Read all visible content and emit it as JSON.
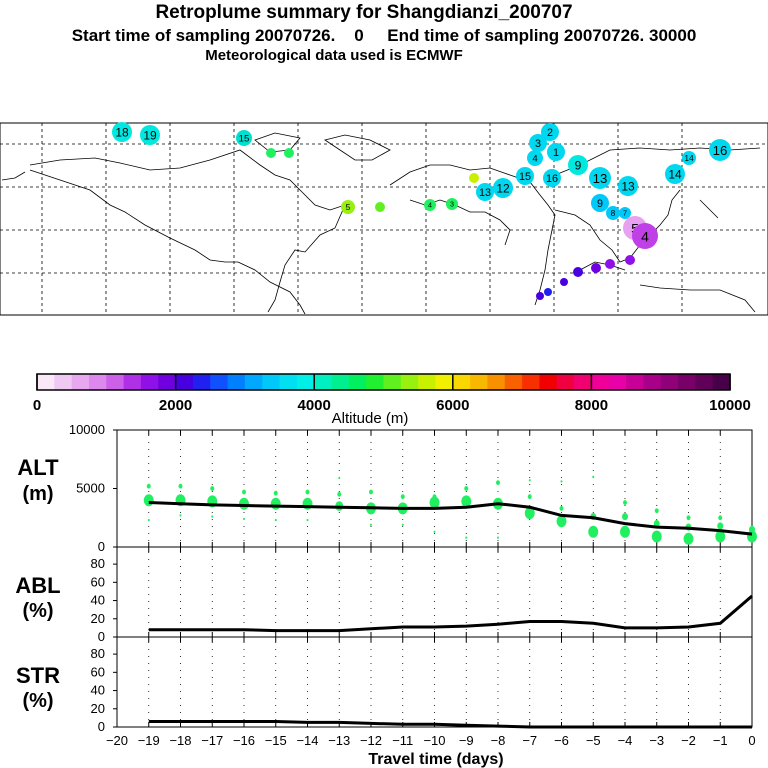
{
  "header": {
    "title": "Retroplume summary for Shangdianzi_200707",
    "line2": "Start time of sampling 20070726.    0     End time of sampling 20070726. 30000",
    "line3": "Meteorological data used is ECMWF"
  },
  "colorbar": {
    "colors": [
      "#f8e8f8",
      "#f0c8f4",
      "#e8a8f0",
      "#dc88ec",
      "#cc60e8",
      "#b030e8",
      "#9010e8",
      "#7000e0",
      "#4800e0",
      "#2020f0",
      "#1050ff",
      "#0080ff",
      "#00a8ff",
      "#00c8f8",
      "#00e0f0",
      "#00f0e8",
      "#00f0c0",
      "#00f090",
      "#00f060",
      "#20f030",
      "#60f020",
      "#98f010",
      "#c8f000",
      "#f0f000",
      "#f8d800",
      "#f8b800",
      "#f89000",
      "#f86000",
      "#f83000",
      "#f00000",
      "#f00040",
      "#f00070",
      "#f00098",
      "#e800a8",
      "#c80098",
      "#a80088",
      "#900078",
      "#780068",
      "#600058",
      "#480048"
    ],
    "ticks": [
      "0",
      "2000",
      "4000",
      "6000",
      "8000",
      "10000"
    ],
    "label": "Altitude (m)"
  },
  "map_labels": [
    "18",
    "19",
    "15",
    "16",
    "14",
    "13",
    "12",
    "9",
    "8",
    "7",
    "5",
    "4",
    "3",
    "2",
    "1"
  ],
  "panels": {
    "alt": {
      "label1": "ALT",
      "label2": "(m)",
      "yticks": [
        "10000",
        "5000",
        "0"
      ]
    },
    "abl": {
      "label1": "ABL",
      "label2": "(%)",
      "yticks": [
        "80",
        "60",
        "40",
        "20",
        "0"
      ]
    },
    "str": {
      "label1": "STR",
      "label2": "(%)",
      "yticks": [
        "80",
        "60",
        "40",
        "20",
        "0"
      ]
    }
  },
  "xaxis": {
    "ticks": [
      "−20",
      "−19",
      "−18",
      "−17",
      "−16",
      "−15",
      "−14",
      "−13",
      "−12",
      "−11",
      "−10",
      "−9",
      "−8",
      "−7",
      "−6",
      "−5",
      "−4",
      "−3",
      "−2",
      "−1",
      "0"
    ],
    "label": "Travel time (days)"
  },
  "chart_data": [
    {
      "type": "line",
      "title": "ALT",
      "ylabel": "(m)",
      "xlabel": "Travel time (days)",
      "xlim": [
        -20,
        0
      ],
      "ylim": [
        0,
        10000
      ],
      "x": [
        -19,
        -18,
        -17,
        -16,
        -15,
        -14,
        -13,
        -12,
        -11,
        -10,
        -9,
        -8,
        -7,
        -6,
        -5,
        -4,
        -3,
        -2,
        -1,
        0
      ],
      "series": [
        {
          "name": "mean altitude",
          "values": [
            3800,
            3700,
            3600,
            3550,
            3500,
            3450,
            3400,
            3350,
            3300,
            3300,
            3400,
            3700,
            3400,
            2700,
            2500,
            2000,
            1700,
            1600,
            1400,
            1100
          ]
        }
      ],
      "clusters": [
        {
          "x": -19,
          "alts": [
            4000,
            5200,
            2300
          ],
          "sizes": [
            5,
            2,
            1
          ]
        },
        {
          "x": -18,
          "alts": [
            4000,
            5200,
            2700
          ],
          "sizes": [
            5,
            2,
            1
          ]
        },
        {
          "x": -17,
          "alts": [
            3900,
            5000,
            2600
          ],
          "sizes": [
            5,
            2,
            1
          ]
        },
        {
          "x": -16,
          "alts": [
            3700,
            4700,
            2400
          ],
          "sizes": [
            5,
            2,
            1
          ]
        },
        {
          "x": -15,
          "alts": [
            3700,
            4600,
            2300
          ],
          "sizes": [
            5,
            2,
            1
          ]
        },
        {
          "x": -14,
          "alts": [
            3700,
            4700,
            2300
          ],
          "sizes": [
            5,
            2,
            1
          ]
        },
        {
          "x": -13,
          "alts": [
            3500,
            4500,
            5900
          ],
          "sizes": [
            4,
            2,
            1
          ]
        },
        {
          "x": -12,
          "alts": [
            3300,
            4700,
            1900
          ],
          "sizes": [
            5,
            2,
            1
          ]
        },
        {
          "x": -11,
          "alts": [
            3300,
            4300,
            1900
          ],
          "sizes": [
            5,
            2,
            1
          ]
        },
        {
          "x": -10,
          "alts": [
            3800,
            4300,
            1300
          ],
          "sizes": [
            5,
            2,
            1
          ]
        },
        {
          "x": -9,
          "alts": [
            3900,
            5000,
            800
          ],
          "sizes": [
            5,
            2,
            1
          ]
        },
        {
          "x": -8,
          "alts": [
            3700,
            5500,
            800
          ],
          "sizes": [
            5,
            2,
            1
          ]
        },
        {
          "x": -7,
          "alts": [
            2900,
            4300,
            5700
          ],
          "sizes": [
            5,
            2,
            1
          ]
        },
        {
          "x": -6,
          "alts": [
            2200,
            3300,
            5600
          ],
          "sizes": [
            5,
            2,
            1
          ]
        },
        {
          "x": -5,
          "alts": [
            1300,
            2600,
            6000
          ],
          "sizes": [
            5,
            3,
            1
          ]
        },
        {
          "x": -4,
          "alts": [
            1300,
            2600,
            3800
          ],
          "sizes": [
            5,
            3,
            2
          ]
        },
        {
          "x": -3,
          "alts": [
            900,
            2000,
            3100
          ],
          "sizes": [
            5,
            3,
            2
          ]
        },
        {
          "x": -2,
          "alts": [
            700,
            1700,
            2500
          ],
          "sizes": [
            5,
            3,
            2
          ]
        },
        {
          "x": -1,
          "alts": [
            900,
            1800,
            2500
          ],
          "sizes": [
            5,
            3,
            2
          ]
        },
        {
          "x": 0,
          "alts": [
            900,
            1500
          ],
          "sizes": [
            5,
            3
          ]
        }
      ]
    },
    {
      "type": "line",
      "title": "ABL",
      "ylabel": "(%)",
      "xlim": [
        -20,
        0
      ],
      "ylim": [
        0,
        90
      ],
      "x": [
        -19,
        -18,
        -17,
        -16,
        -15,
        -14,
        -13,
        -12,
        -11,
        -10,
        -9,
        -8,
        -7,
        -6,
        -5,
        -4,
        -3,
        -2,
        -1,
        0
      ],
      "series": [
        {
          "name": "ABL fraction",
          "values": [
            8,
            8,
            8,
            8,
            7,
            7,
            7,
            9,
            11,
            11,
            12,
            14,
            17,
            17,
            15,
            10,
            10,
            11,
            15,
            45
          ]
        }
      ]
    },
    {
      "type": "line",
      "title": "STR",
      "ylabel": "(%)",
      "xlim": [
        -20,
        0
      ],
      "ylim": [
        0,
        90
      ],
      "x": [
        -19,
        -18,
        -17,
        -16,
        -15,
        -14,
        -13,
        -12,
        -11,
        -10,
        -9,
        -8,
        -7,
        -6,
        -5,
        -4,
        -3,
        -2,
        -1,
        0
      ],
      "series": [
        {
          "name": "stratospheric fraction",
          "values": [
            6,
            6,
            6,
            6,
            6,
            5,
            5,
            4,
            3,
            3,
            2,
            1,
            0,
            0,
            0,
            0,
            0,
            0,
            0,
            0
          ]
        }
      ]
    }
  ]
}
